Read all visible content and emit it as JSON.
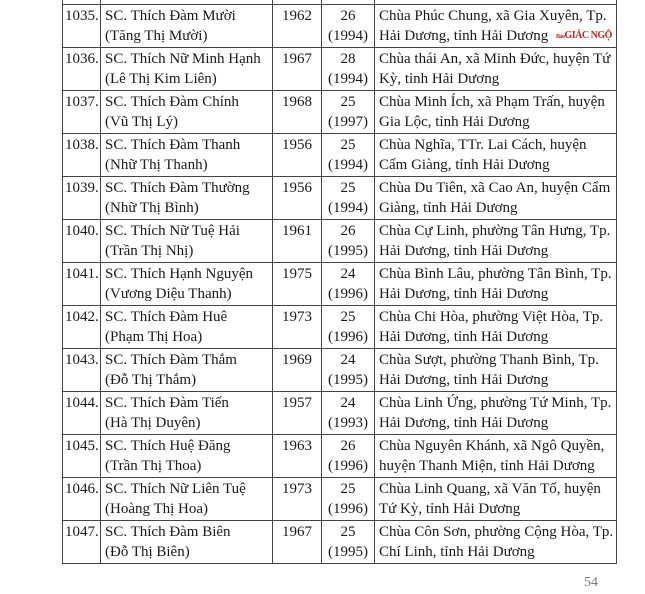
{
  "watermark": {
    "prefix": "Báo",
    "brand": "GIÁC NGỘ",
    "color": "#c0281e"
  },
  "rows": [
    {
      "no": "1035.",
      "name": "SC. Thích Đàm Mười",
      "lay": "(Tăng Thị Mười)",
      "year": "1962",
      "age": "26",
      "since": "(1994)",
      "addr1": "Chùa Phúc Chung, xã Gia Xuyên, Tp.",
      "addr2": "Hải Dương, tỉnh Hải Dương"
    },
    {
      "no": "1036.",
      "name": "SC. Thích Nữ Minh Hạnh",
      "lay": "(Lê Thị Kim Liên)",
      "year": "1967",
      "age": "28",
      "since": "(1994)",
      "addr1": "Chùa thái An, xã Minh Đức, huyện Tứ",
      "addr2": "Kỳ, tỉnh Hải Dương"
    },
    {
      "no": "1037.",
      "name": "SC. Thích Đàm Chính",
      "lay": "(Vũ Thị Lý)",
      "year": "1968",
      "age": "25",
      "since": "(1997)",
      "addr1": "Chùa Minh Ích, xã Phạm Trấn, huyện",
      "addr2": "Gia Lộc, tỉnh Hải Dương"
    },
    {
      "no": "1038.",
      "name": "SC. Thích Đàm Thanh",
      "lay": "(Nhữ Thị Thanh)",
      "year": "1956",
      "age": "25",
      "since": "(1994)",
      "addr1": "Chùa Nghĩa, TTr. Lai Cách, huyện",
      "addr2": "Cẩm Giàng, tỉnh Hải Dương"
    },
    {
      "no": "1039.",
      "name": "SC. Thích Đàm Thường",
      "lay": "(Nhữ Thị Bình)",
      "year": "1956",
      "age": "25",
      "since": "(1994)",
      "addr1": "Chùa Du Tiên, xã Cao An, huyện Cẩm",
      "addr2": "Giàng, tỉnh Hải Dương"
    },
    {
      "no": "1040.",
      "name": "SC. Thích Nữ Tuệ Hải",
      "lay": "(Trần Thị Nhị)",
      "year": "1961",
      "age": "26",
      "since": "(1995)",
      "addr1": "Chùa Cự Linh, phường Tân Hưng, Tp.",
      "addr2": "Hải Dương, tỉnh Hải Dương"
    },
    {
      "no": "1041.",
      "name": "SC. Thích Hạnh Nguyện",
      "lay": "(Vương Diệu Thanh)",
      "year": "1975",
      "age": "24",
      "since": "(1996)",
      "addr1": "Chùa Bình Lâu, phường Tân Bình, Tp.",
      "addr2": "Hải Dương, tỉnh Hải Dương"
    },
    {
      "no": "1042.",
      "name": "SC. Thích Đàm Huê",
      "lay": "(Phạm Thị Hoa)",
      "year": "1973",
      "age": "25",
      "since": "(1996)",
      "addr1": "Chùa Chi Hòa, phường Việt Hòa, Tp.",
      "addr2": "Hải Dương, tỉnh Hải Dương"
    },
    {
      "no": "1043.",
      "name": "SC. Thích Đàm Thắm",
      "lay": "(Đỗ Thị Thắm)",
      "year": "1969",
      "age": "24",
      "since": "(1995)",
      "addr1": "Chùa Sượt, phường Thanh Bình, Tp.",
      "addr2": "Hải Dương, tỉnh Hải Dương"
    },
    {
      "no": "1044.",
      "name": "SC. Thích Đàm Tiến",
      "lay": "(Hà Thị Duyên)",
      "year": "1957",
      "age": "24",
      "since": "(1993)",
      "addr1": "Chùa Linh Ứng, phường Tứ Minh, Tp.",
      "addr2": "Hải Dương, tỉnh Hải Dương"
    },
    {
      "no": "1045.",
      "name": "SC. Thích Huệ Đăng",
      "lay": "(Trần Thị Thoa)",
      "year": "1963",
      "age": "26",
      "since": "(1996)",
      "addr1": "Chùa Nguyên Khánh, xã Ngô Quyền,",
      "addr2": "huyện Thanh Miện, tỉnh Hải Dương"
    },
    {
      "no": "1046.",
      "name": "SC. Thích Nữ Liên Tuệ",
      "lay": "(Hoàng Thị Hoa)",
      "year": "1973",
      "age": "25",
      "since": "(1996)",
      "addr1": "Chùa Linh Quang, xã Văn Tố, huyện",
      "addr2": "Tứ Kỳ, tỉnh Hải Dương"
    },
    {
      "no": "1047.",
      "name": "SC. Thích Đàm Biên",
      "lay": "(Đỗ Thị Biên)",
      "year": "1967",
      "age": "25",
      "since": "(1995)",
      "addr1": "Chùa Côn Sơn, phường Cộng Hòa, Tp.",
      "addr2": "Chí Linh, tỉnh Hải Dương"
    }
  ],
  "page_number": "54"
}
